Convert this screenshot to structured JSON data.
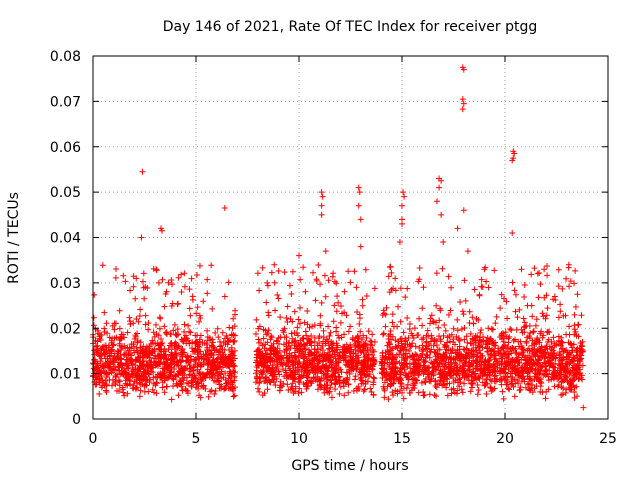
{
  "chart_data": {
    "type": "scatter",
    "title": "Day 146 of 2021, Rate Of TEC Index for receiver ptgg",
    "xlabel": "GPS time / hours",
    "ylabel": "ROTI / TECUs",
    "xlim": [
      0,
      25
    ],
    "ylim": [
      0,
      0.08
    ],
    "xticks": [
      "0",
      "5",
      "10",
      "15",
      "20",
      "25"
    ],
    "yticks": [
      "0",
      "0.01",
      "0.02",
      "0.03",
      "0.04",
      "0.05",
      "0.06",
      "0.07",
      "0.08"
    ],
    "grid": true,
    "marker": "+",
    "color": "#ff0000",
    "data_windows_hours": [
      [
        0,
        6.9
      ],
      [
        7.9,
        13.7
      ],
      [
        14.0,
        23.8
      ]
    ],
    "notable_points": [
      {
        "x": 2.4,
        "y": 0.0545
      },
      {
        "x": 2.35,
        "y": 0.04
      },
      {
        "x": 3.3,
        "y": 0.042
      },
      {
        "x": 3.35,
        "y": 0.0415
      },
      {
        "x": 6.4,
        "y": 0.0465
      },
      {
        "x": 11.1,
        "y": 0.05
      },
      {
        "x": 11.15,
        "y": 0.049
      },
      {
        "x": 11.1,
        "y": 0.047
      },
      {
        "x": 11.1,
        "y": 0.045
      },
      {
        "x": 12.9,
        "y": 0.051
      },
      {
        "x": 12.95,
        "y": 0.05
      },
      {
        "x": 12.9,
        "y": 0.047
      },
      {
        "x": 13.0,
        "y": 0.044
      },
      {
        "x": 15.05,
        "y": 0.05
      },
      {
        "x": 15.1,
        "y": 0.049
      },
      {
        "x": 15.0,
        "y": 0.047
      },
      {
        "x": 15.0,
        "y": 0.044
      },
      {
        "x": 15.0,
        "y": 0.043
      },
      {
        "x": 16.8,
        "y": 0.053
      },
      {
        "x": 16.9,
        "y": 0.0525
      },
      {
        "x": 16.8,
        "y": 0.051
      },
      {
        "x": 16.7,
        "y": 0.048
      },
      {
        "x": 16.9,
        "y": 0.045
      },
      {
        "x": 17.95,
        "y": 0.0775
      },
      {
        "x": 18.0,
        "y": 0.077
      },
      {
        "x": 17.95,
        "y": 0.0705
      },
      {
        "x": 18.0,
        "y": 0.0695
      },
      {
        "x": 17.95,
        "y": 0.0683
      },
      {
        "x": 18.0,
        "y": 0.046
      },
      {
        "x": 17.7,
        "y": 0.042
      },
      {
        "x": 20.4,
        "y": 0.059
      },
      {
        "x": 20.45,
        "y": 0.0585
      },
      {
        "x": 20.4,
        "y": 0.0575
      },
      {
        "x": 20.35,
        "y": 0.057
      },
      {
        "x": 20.35,
        "y": 0.041
      },
      {
        "x": 2.1,
        "y": 0.031
      },
      {
        "x": 3.2,
        "y": 0.03
      },
      {
        "x": 4.3,
        "y": 0.028
      },
      {
        "x": 6.4,
        "y": 0.027
      },
      {
        "x": 8.8,
        "y": 0.034
      },
      {
        "x": 10.0,
        "y": 0.036
      },
      {
        "x": 11.3,
        "y": 0.037
      },
      {
        "x": 13.0,
        "y": 0.038
      },
      {
        "x": 14.9,
        "y": 0.039
      },
      {
        "x": 17.0,
        "y": 0.039
      },
      {
        "x": 18.2,
        "y": 0.037
      },
      {
        "x": 19.0,
        "y": 0.033
      },
      {
        "x": 20.8,
        "y": 0.033
      },
      {
        "x": 21.9,
        "y": 0.033
      },
      {
        "x": 23.1,
        "y": 0.034
      },
      {
        "x": 23.8,
        "y": 0.0025
      }
    ],
    "bulk_band": {
      "y_low": 0.004,
      "y_high": 0.022,
      "description": "dense cloud of points in each data window"
    }
  }
}
